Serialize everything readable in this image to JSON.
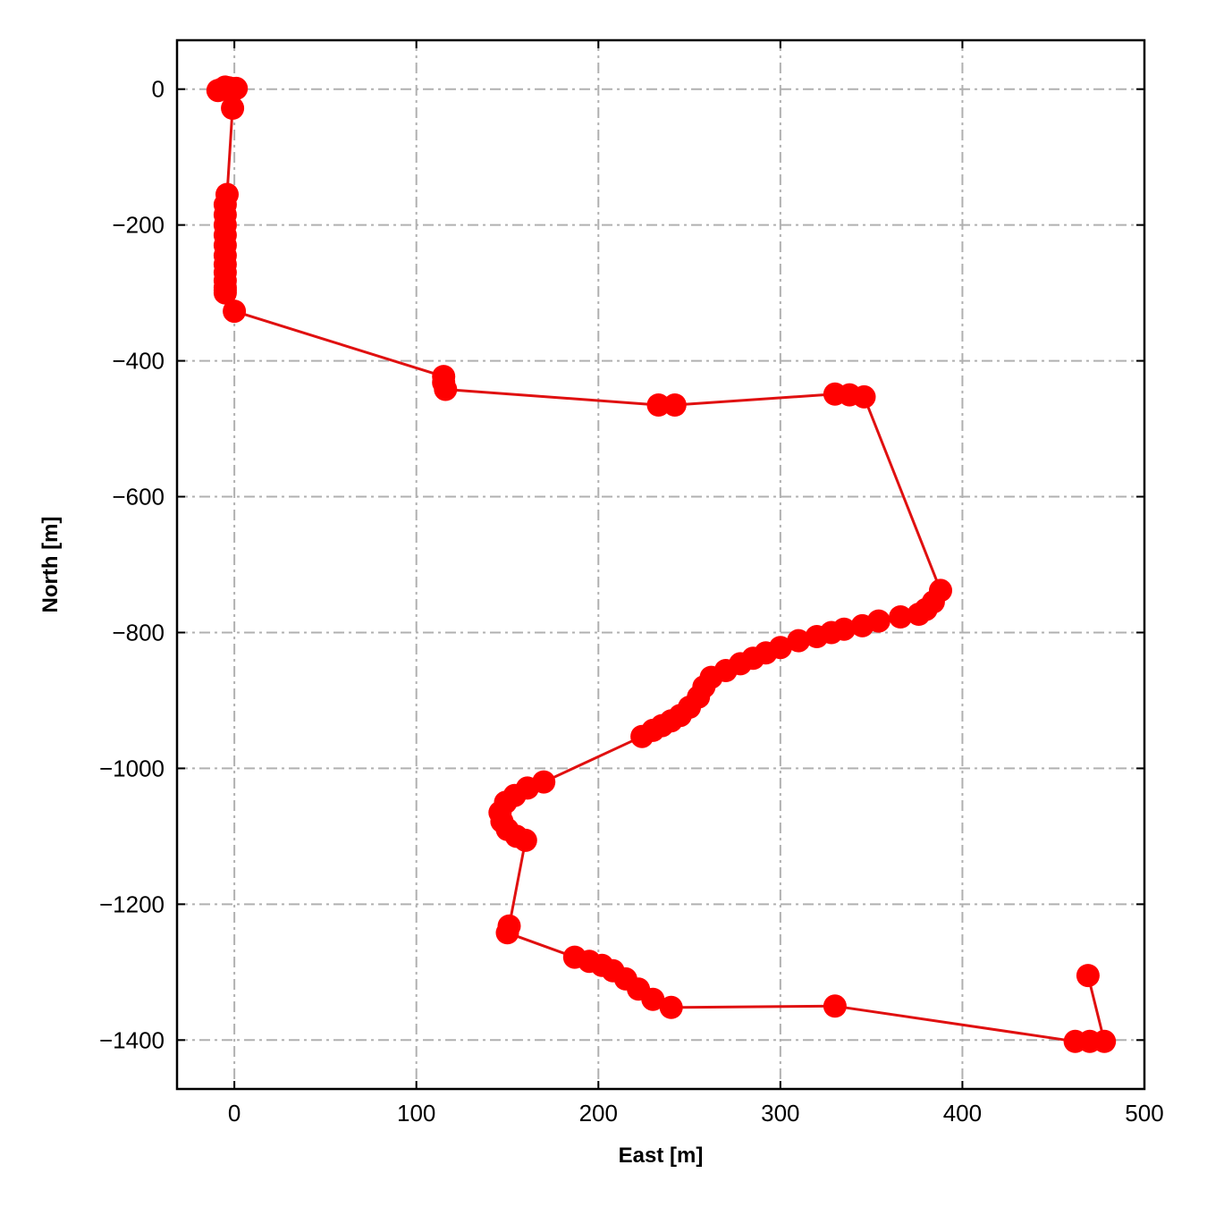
{
  "chart_data": {
    "type": "line",
    "title": "",
    "xlabel": "East [m]",
    "ylabel": "North [m]",
    "xlim": [
      -31.5,
      500
    ],
    "ylim": [
      -1472,
      72
    ],
    "xticks": [
      0,
      100,
      200,
      300,
      400,
      500
    ],
    "yticks": [
      0,
      -200,
      -400,
      -600,
      -800,
      -1000,
      -1200,
      -1400
    ],
    "xtick_labels": [
      "0",
      "100",
      "200",
      "300",
      "400",
      "500"
    ],
    "ytick_labels": [
      "0",
      "−200",
      "−400",
      "−600",
      "−800",
      "−1000",
      "−1200",
      "−1400"
    ],
    "grid": true,
    "grid_style": "dash-dot",
    "series": [
      {
        "color": "#ff0000",
        "line_color": "#e01010",
        "marker": "circle",
        "x": [
          0,
          1,
          -3,
          -7,
          -9,
          -5,
          -2,
          -1,
          -4,
          -5,
          -5,
          -5,
          -5,
          -5,
          -5,
          -5,
          -5,
          -5,
          -5,
          -5,
          -5,
          0,
          115,
          115,
          116,
          233,
          242,
          330,
          338,
          346,
          388,
          384,
          380,
          376,
          366,
          354,
          345,
          335,
          328,
          320,
          310,
          300,
          292,
          285,
          278,
          270,
          262,
          258,
          255,
          250,
          245,
          240,
          235,
          230,
          224,
          170,
          161,
          154,
          149,
          146,
          147,
          150,
          155,
          160,
          151,
          150,
          187,
          195,
          202,
          208,
          215,
          222,
          230,
          240,
          330,
          462,
          470,
          478,
          469
        ],
        "y": [
          0,
          1,
          2,
          0,
          -2,
          3,
          1,
          -28,
          -155,
          -170,
          -185,
          -200,
          -215,
          -230,
          -245,
          -258,
          -270,
          -282,
          -292,
          -300,
          -296,
          -327,
          -423,
          -432,
          -442,
          -465,
          -465,
          -449,
          -450,
          -453,
          -738,
          -755,
          -766,
          -773,
          -777,
          -783,
          -790,
          -795,
          -800,
          -806,
          -812,
          -822,
          -830,
          -838,
          -846,
          -856,
          -866,
          -880,
          -895,
          -910,
          -922,
          -930,
          -937,
          -944,
          -953,
          -1020,
          -1029,
          -1040,
          -1050,
          -1065,
          -1078,
          -1090,
          -1100,
          -1106,
          -1232,
          -1242,
          -1278,
          -1284,
          -1290,
          -1298,
          -1310,
          -1325,
          -1340,
          -1352,
          -1350,
          -1402,
          -1402,
          -1402,
          -1305
        ]
      }
    ]
  }
}
